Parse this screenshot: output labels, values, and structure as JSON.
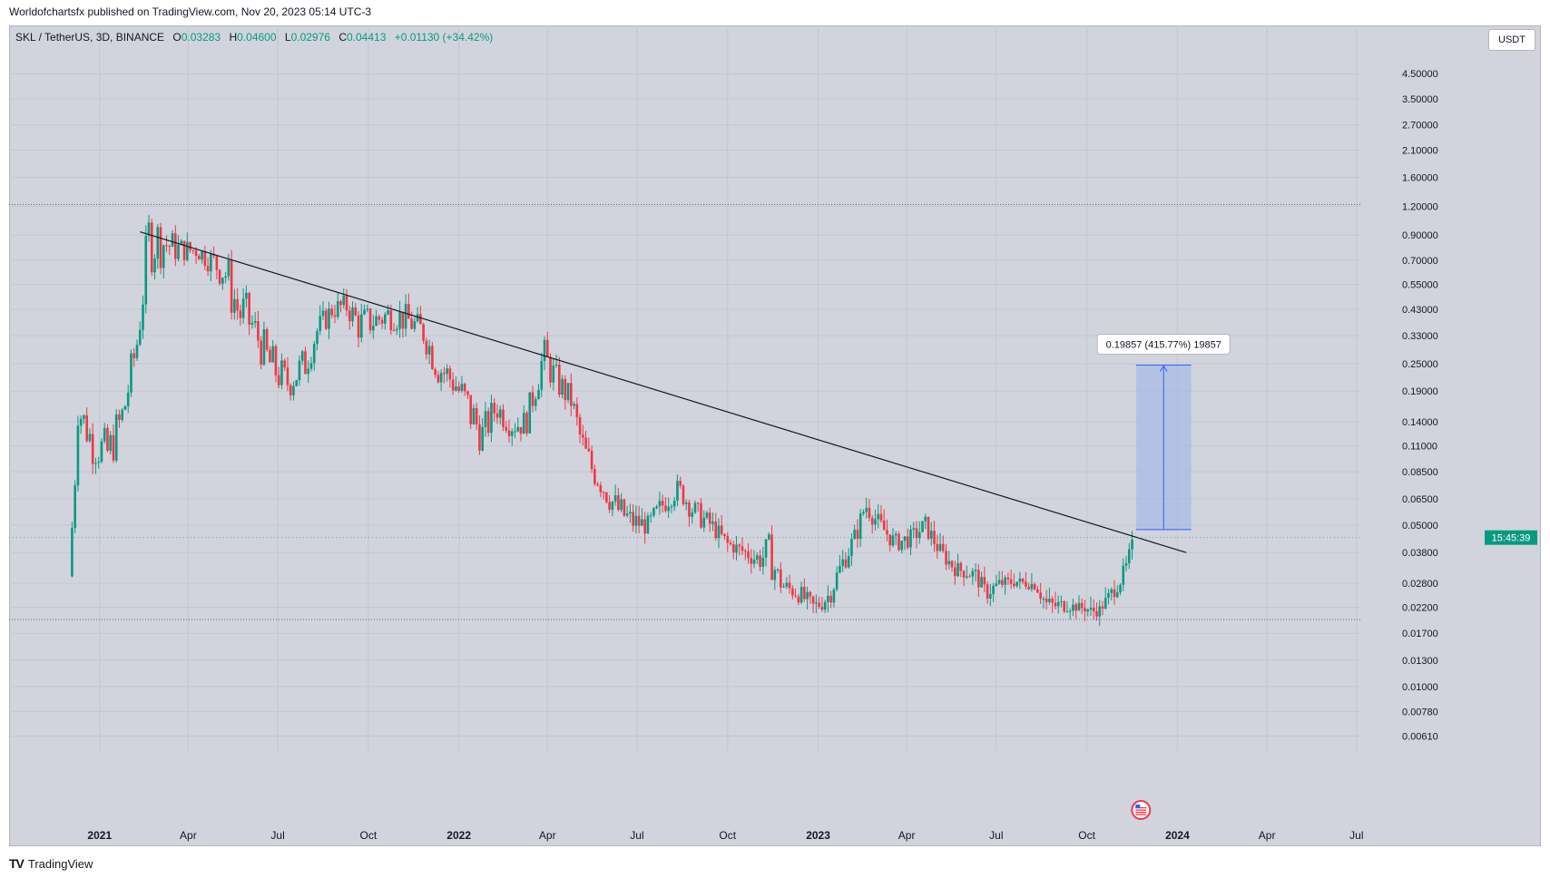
{
  "caption": "Worldofchartsfx published on TradingView.com, Nov 20, 2023 05:14 UTC-3",
  "legend": {
    "symbol": "SKL / TetherUS, 3D, BINANCE",
    "open_label": "O",
    "open": "0.03283",
    "high_label": "H",
    "high": "0.04600",
    "low_label": "L",
    "low": "0.02976",
    "close_label": "C",
    "close": "0.04413",
    "change": "+0.01130 (+34.42%)"
  },
  "unit": "USDT",
  "countdown": "15:45:39",
  "measure_label": "0.19857 (415.77%) 19857",
  "footer": {
    "logo_mark": "TV",
    "logo_text": "TradingView"
  },
  "colors": {
    "background": "#d1d4dc",
    "up": "#089981",
    "down": "#f23645",
    "trendline": "#131722",
    "measure_fill": "#9fb6e8",
    "measure_line": "#2962ff"
  },
  "icons": {
    "flag": "us-flag-event-icon"
  },
  "chart_data": {
    "type": "candlestick",
    "symbol": "SKL/USDT",
    "interval": "3D",
    "y_scale": "log",
    "ylim": [
      0.0055,
      5.5
    ],
    "y_ticks": [
      "4.50000",
      "3.50000",
      "2.70000",
      "2.10000",
      "1.60000",
      "1.20000",
      "0.90000",
      "0.70000",
      "0.55000",
      "0.43000",
      "0.33000",
      "0.25000",
      "0.19000",
      "0.14000",
      "0.11000",
      "0.08500",
      "0.06500",
      "0.05000",
      "0.03800",
      "0.02800",
      "0.02200",
      "0.01700",
      "0.01300",
      "0.01000",
      "0.00780",
      "0.00610"
    ],
    "x_range": [
      "2020-10-01",
      "2024-07-15"
    ],
    "x_ticks": [
      {
        "label": "2021",
        "date": "2021-01-01",
        "bold": true
      },
      {
        "label": "Apr",
        "date": "2021-04-01"
      },
      {
        "label": "Jul",
        "date": "2021-07-01"
      },
      {
        "label": "Oct",
        "date": "2021-10-01"
      },
      {
        "label": "2022",
        "date": "2022-01-01",
        "bold": true
      },
      {
        "label": "Apr",
        "date": "2022-04-01"
      },
      {
        "label": "Jul",
        "date": "2022-07-01"
      },
      {
        "label": "Oct",
        "date": "2022-10-01"
      },
      {
        "label": "2023",
        "date": "2023-01-01",
        "bold": true
      },
      {
        "label": "Apr",
        "date": "2023-04-01"
      },
      {
        "label": "Jul",
        "date": "2023-07-01"
      },
      {
        "label": "Oct",
        "date": "2023-10-01"
      },
      {
        "label": "2024",
        "date": "2024-01-01",
        "bold": true
      },
      {
        "label": "Apr",
        "date": "2024-04-01"
      },
      {
        "label": "Jul",
        "date": "2024-07-01"
      }
    ],
    "horizontal_levels": [
      1.22,
      0.0195
    ],
    "trendline": {
      "start": [
        "2021-02-11",
        0.93
      ],
      "end": [
        "2024-01-10",
        0.038
      ]
    },
    "measure": {
      "start_date": "2023-11-20",
      "end_date": "2024-01-15",
      "from": 0.0478,
      "to": 0.2463
    },
    "anchors": [
      [
        "2020-12-04",
        0.03,
        0.08
      ],
      [
        "2020-12-10",
        0.13,
        0.2
      ],
      [
        "2020-12-25",
        0.09,
        0.14
      ],
      [
        "2021-01-10",
        0.08,
        0.13
      ],
      [
        "2021-01-25",
        0.12,
        0.19
      ],
      [
        "2021-02-08",
        0.25,
        0.38
      ],
      [
        "2021-02-20",
        0.6,
        1.22
      ],
      [
        "2021-03-05",
        0.65,
        1.1
      ],
      [
        "2021-03-20",
        0.68,
        0.9
      ],
      [
        "2021-04-10",
        0.7,
        0.85
      ],
      [
        "2021-04-25",
        0.6,
        0.8
      ],
      [
        "2021-05-08",
        0.5,
        0.8
      ],
      [
        "2021-05-22",
        0.3,
        0.6
      ],
      [
        "2021-06-05",
        0.3,
        0.45
      ],
      [
        "2021-06-22",
        0.2,
        0.32
      ],
      [
        "2021-07-10",
        0.17,
        0.25
      ],
      [
        "2021-07-28",
        0.2,
        0.3
      ],
      [
        "2021-08-10",
        0.3,
        0.4
      ],
      [
        "2021-08-25",
        0.38,
        0.48
      ],
      [
        "2021-09-08",
        0.4,
        0.5
      ],
      [
        "2021-09-22",
        0.3,
        0.45
      ],
      [
        "2021-10-08",
        0.33,
        0.45
      ],
      [
        "2021-10-25",
        0.35,
        0.48
      ],
      [
        "2021-11-10",
        0.33,
        0.45
      ],
      [
        "2021-11-25",
        0.3,
        0.4
      ],
      [
        "2021-12-10",
        0.2,
        0.3
      ],
      [
        "2021-12-28",
        0.17,
        0.25
      ],
      [
        "2022-01-12",
        0.12,
        0.2
      ],
      [
        "2022-01-25",
        0.1,
        0.15
      ],
      [
        "2022-02-08",
        0.14,
        0.19
      ],
      [
        "2022-02-22",
        0.12,
        0.15
      ],
      [
        "2022-03-10",
        0.12,
        0.16
      ],
      [
        "2022-03-28",
        0.22,
        0.33
      ],
      [
        "2022-04-10",
        0.18,
        0.25
      ],
      [
        "2022-04-25",
        0.15,
        0.2
      ],
      [
        "2022-05-08",
        0.08,
        0.13
      ],
      [
        "2022-05-22",
        0.07,
        0.09
      ],
      [
        "2022-06-10",
        0.05,
        0.07
      ],
      [
        "2022-06-25",
        0.045,
        0.06
      ],
      [
        "2022-07-12",
        0.045,
        0.055
      ],
      [
        "2022-07-28",
        0.055,
        0.07
      ],
      [
        "2022-08-12",
        0.065,
        0.08
      ],
      [
        "2022-08-28",
        0.05,
        0.065
      ],
      [
        "2022-09-15",
        0.045,
        0.055
      ],
      [
        "2022-10-01",
        0.038,
        0.045
      ],
      [
        "2022-10-15",
        0.036,
        0.042
      ],
      [
        "2022-10-30",
        0.032,
        0.04
      ],
      [
        "2022-11-12",
        0.03,
        0.046
      ],
      [
        "2022-11-25",
        0.025,
        0.03
      ],
      [
        "2022-12-12",
        0.023,
        0.028
      ],
      [
        "2022-12-28",
        0.02,
        0.024
      ],
      [
        "2023-01-12",
        0.022,
        0.028
      ],
      [
        "2023-01-25",
        0.03,
        0.038
      ],
      [
        "2023-02-08",
        0.04,
        0.05
      ],
      [
        "2023-02-18",
        0.055,
        0.068
      ],
      [
        "2023-03-05",
        0.045,
        0.055
      ],
      [
        "2023-03-20",
        0.038,
        0.046
      ],
      [
        "2023-04-05",
        0.04,
        0.048
      ],
      [
        "2023-04-20",
        0.045,
        0.055
      ],
      [
        "2023-05-05",
        0.035,
        0.042
      ],
      [
        "2023-05-20",
        0.03,
        0.035
      ],
      [
        "2023-06-10",
        0.028,
        0.033
      ],
      [
        "2023-06-20",
        0.023,
        0.028
      ],
      [
        "2023-07-05",
        0.026,
        0.03
      ],
      [
        "2023-07-22",
        0.027,
        0.03
      ],
      [
        "2023-08-10",
        0.026,
        0.029
      ],
      [
        "2023-08-22",
        0.02,
        0.025
      ],
      [
        "2023-09-10",
        0.021,
        0.024
      ],
      [
        "2023-09-25",
        0.021,
        0.023
      ],
      [
        "2023-10-12",
        0.02,
        0.022
      ],
      [
        "2023-10-25",
        0.023,
        0.027
      ],
      [
        "2023-11-08",
        0.028,
        0.034
      ],
      [
        "2023-11-17",
        0.0298,
        0.046
      ]
    ]
  }
}
